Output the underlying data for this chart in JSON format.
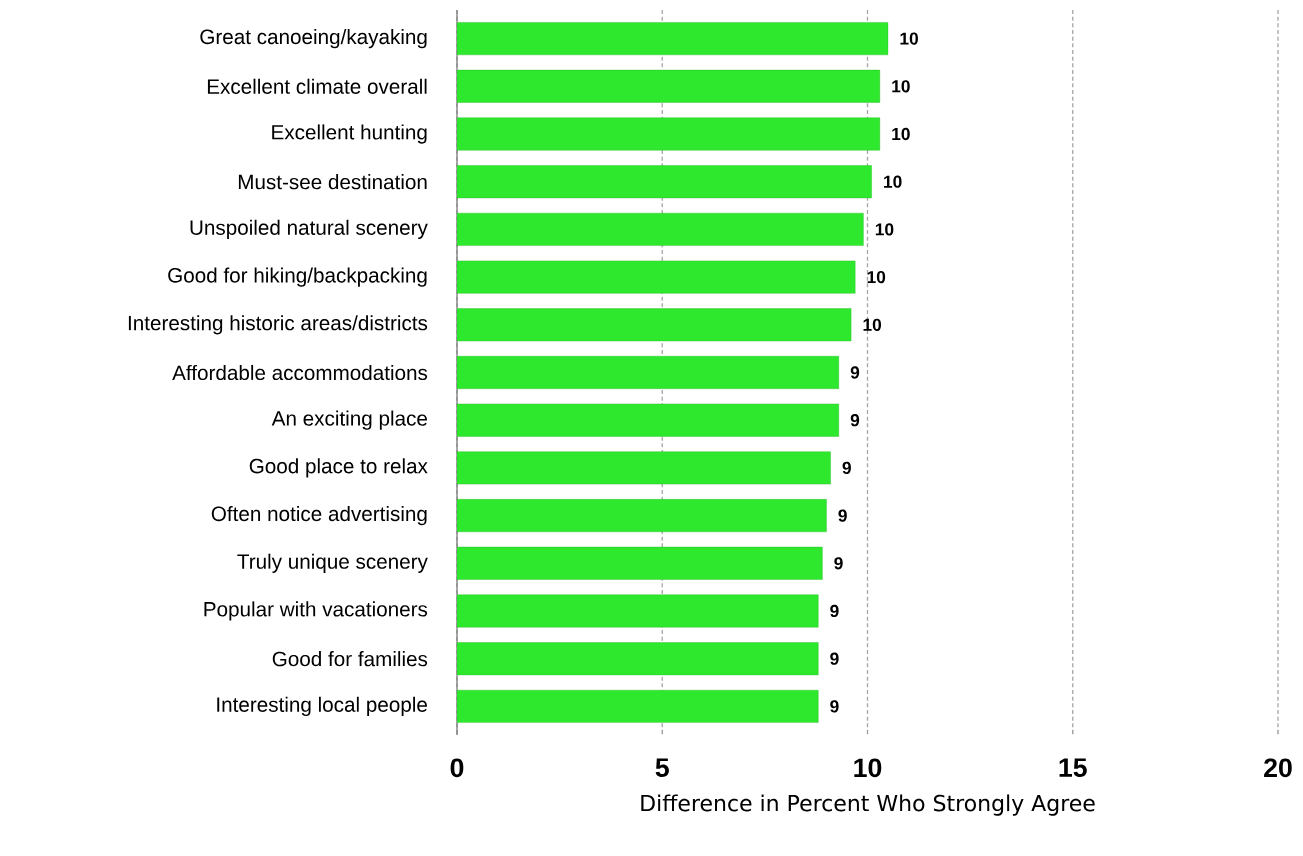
{
  "chart_data": {
    "type": "bar",
    "orientation": "horizontal",
    "xlabel": "Difference in Percent Who Strongly Agree",
    "categories": [
      "Great canoeing/kayaking",
      "Excellent climate overall",
      "Excellent hunting",
      "Must-see destination",
      "Unspoiled natural scenery",
      "Good for hiking/backpacking",
      "Interesting historic areas/districts",
      "Affordable accommodations",
      "An exciting place",
      "Good place to relax",
      "Often notice advertising",
      "Truly unique scenery",
      "Popular with vacationers",
      "Good for families",
      "Interesting local people"
    ],
    "values": [
      10.5,
      10.3,
      10.3,
      10.1,
      9.9,
      9.7,
      9.6,
      9.3,
      9.3,
      9.1,
      9.0,
      8.9,
      8.8,
      8.8,
      8.8
    ],
    "value_labels": [
      "10",
      "10",
      "10",
      "10",
      "10",
      "10",
      "10",
      "9",
      "9",
      "9",
      "9",
      "9",
      "9",
      "9",
      "9"
    ],
    "color": "#2ee82e",
    "xlim": [
      0,
      20
    ],
    "xticks": [
      0,
      5,
      10,
      15,
      20
    ],
    "grid": "x"
  }
}
